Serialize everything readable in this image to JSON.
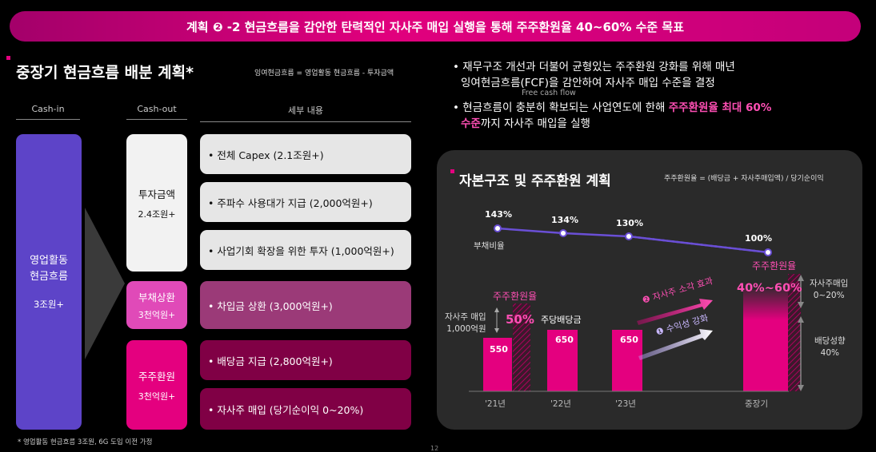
{
  "banner": {
    "title": "계획 ❷ -2  현금흐름을 감안한 탄력적인 자사주 매입 실행을 통해 주주환원율 40~60% 수준 목표"
  },
  "left": {
    "title": "중장기 현금흐름 배분 계획*",
    "formula": "잉여현금흐름 = 영업활동 현금흐름 - 투자금액",
    "headers": {
      "cash_in": "Cash-in",
      "cash_out": "Cash-out",
      "detail": "세부 내용"
    },
    "cash_in": {
      "label": "영업활동\n현금흐름",
      "amount": "3조원+"
    },
    "groups": [
      {
        "name": "투자금액",
        "amount": "2.4조원+"
      },
      {
        "name": "부채상환",
        "amount": "3천억원+"
      },
      {
        "name": "주주환원",
        "amount": "3천억원+"
      }
    ],
    "details": [
      "• 전체 Capex (2.1조원+)",
      "• 주파수 사용대가 지급 (2,000억원+)",
      "• 사업기회 확장을 위한 투자 (1,000억원+)",
      "• 차입금 상환 (3,000억원+)",
      "• 배당금 지급 (2,800억원+)",
      "• 자사주 매입 (당기순이익 0~20%)"
    ],
    "footnote": "* 영업활동 현금흐름 3조원, 6G 도입 이전 가정"
  },
  "right": {
    "bullet1_line1": "재무구조 개선과 더불어 균형있는 주주환원 강화를 위해 매년",
    "bullet1_line2": "잉여현금흐름(FCF)을 감안하여 자사주 매입 수준을 결정",
    "fcf_note": "Free cash flow",
    "bullet2_pre": "현금흐름이 충분히 확보되는 사업연도에 한해 ",
    "bullet2_hl1": "주주환원율 최대 60%",
    "bullet2_hl2": "수준",
    "bullet2_post": "까지 자사주 매입을 실행"
  },
  "panel": {
    "title": "자본구조 및 주주환원 계획",
    "formula": "주주환원율 = (배당금 + 자사주매입액) / 당기순이익",
    "debt_label": "부채비율",
    "debt_values": [
      "143%",
      "134%",
      "130%",
      "100%"
    ],
    "years": [
      "'21년",
      "'22년",
      "'23년",
      "중장기"
    ],
    "bars": [
      "550",
      "650",
      "650"
    ],
    "payout_label_21": "주주환원율",
    "payout_21": "50%",
    "buyback_label": "자사주 매입\n1,000억원",
    "dividend_label": "주당배당금",
    "arrow1": "❷ 자사주 소각 효과",
    "arrow2": "❶ 수익성 강화",
    "payout_label_long": "주주환원율",
    "payout_long": "40%~60%",
    "side_top": "자사주매입\n0~20%",
    "side_bottom": "배당성향\n40%"
  },
  "page_number": "12",
  "colors": {
    "accent": "#e4007f",
    "purple": "#6a4fd6"
  }
}
